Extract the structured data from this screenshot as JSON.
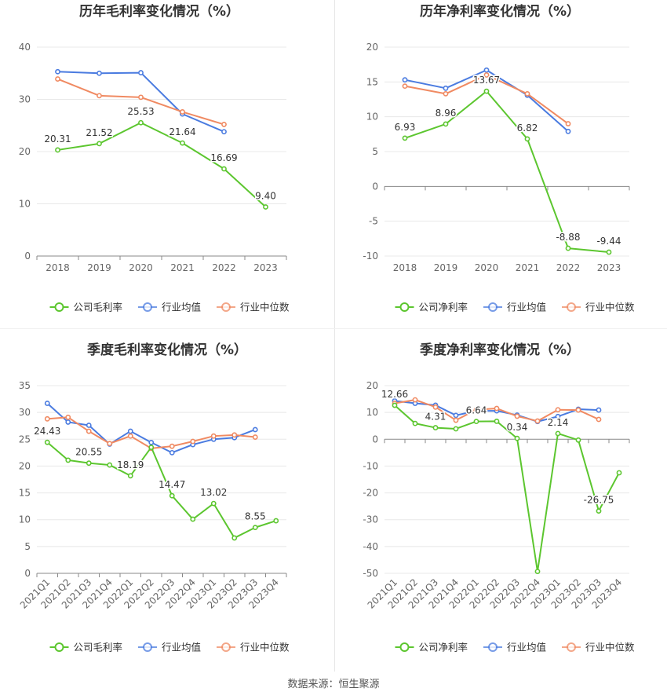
{
  "colors": {
    "company": "#5cc62f",
    "avg": "#4a7be0",
    "median": "#f08a62"
  },
  "source": "数据来源：恒生聚源",
  "chart_data": [
    {
      "type": "line",
      "title": "历年毛利率变化情况（%）",
      "x": [
        "2018",
        "2019",
        "2020",
        "2021",
        "2022",
        "2023"
      ],
      "ylim": [
        0,
        40
      ],
      "yticks": [
        0,
        10,
        20,
        30,
        40
      ],
      "grid": true,
      "legend_position": "bottom",
      "series": [
        {
          "name": "公司毛利率",
          "color": "#5cc62f",
          "values": [
            20.31,
            21.52,
            25.53,
            21.64,
            16.69,
            9.4
          ],
          "labels": [
            "20.31",
            "21.52",
            "25.53",
            "21.64",
            "16.69",
            "9.40"
          ]
        },
        {
          "name": "行业均值",
          "color": "#4a7be0",
          "values": [
            35.3,
            35.0,
            35.1,
            27.2,
            23.8,
            null
          ]
        },
        {
          "name": "行业中位数",
          "color": "#f08a62",
          "values": [
            33.9,
            30.7,
            30.4,
            27.6,
            25.2,
            null
          ]
        }
      ]
    },
    {
      "type": "line",
      "title": "历年净利率变化情况（%）",
      "x": [
        "2018",
        "2019",
        "2020",
        "2021",
        "2022",
        "2023"
      ],
      "ylim": [
        -10,
        20
      ],
      "yticks": [
        -10,
        -5,
        0,
        5,
        10,
        15,
        20
      ],
      "grid": true,
      "legend_position": "bottom",
      "series": [
        {
          "name": "公司净利率",
          "color": "#5cc62f",
          "values": [
            6.93,
            8.96,
            13.67,
            6.82,
            -8.88,
            -9.44
          ],
          "labels": [
            "6.93",
            "8.96",
            "13.67",
            "6.82",
            "-8.88",
            "-9.44"
          ]
        },
        {
          "name": "行业均值",
          "color": "#4a7be0",
          "values": [
            15.3,
            14.1,
            16.7,
            13.1,
            7.9,
            null
          ]
        },
        {
          "name": "行业中位数",
          "color": "#f08a62",
          "values": [
            14.4,
            13.3,
            16.0,
            13.3,
            9.0,
            null
          ]
        }
      ]
    },
    {
      "type": "line",
      "title": "季度毛利率变化情况（%）",
      "x": [
        "2021Q1",
        "2021Q2",
        "2021Q3",
        "2021Q4",
        "2022Q1",
        "2022Q2",
        "2022Q3",
        "2022Q4",
        "2023Q1",
        "2023Q2",
        "2023Q3",
        "2023Q4"
      ],
      "rotate_x": true,
      "ylim": [
        0,
        35
      ],
      "yticks": [
        0,
        5,
        10,
        15,
        20,
        25,
        30,
        35
      ],
      "grid": true,
      "legend_position": "bottom",
      "series": [
        {
          "name": "公司毛利率",
          "color": "#5cc62f",
          "values": [
            24.43,
            21.1,
            20.55,
            20.2,
            18.19,
            23.5,
            14.47,
            10.1,
            13.02,
            6.6,
            8.55,
            9.8
          ],
          "labels": [
            "24.43",
            null,
            "20.55",
            null,
            "18.19",
            null,
            "14.47",
            null,
            "13.02",
            null,
            "8.55",
            null
          ]
        },
        {
          "name": "行业均值",
          "color": "#4a7be0",
          "values": [
            31.7,
            28.2,
            27.6,
            24.1,
            26.5,
            24.4,
            22.5,
            24.0,
            25.0,
            25.3,
            26.8,
            null
          ]
        },
        {
          "name": "行业中位数",
          "color": "#f08a62",
          "values": [
            28.8,
            29.1,
            26.5,
            24.2,
            25.6,
            23.3,
            23.7,
            24.6,
            25.6,
            25.8,
            25.4,
            null
          ]
        }
      ]
    },
    {
      "type": "line",
      "title": "季度净利率变化情况（%）",
      "x": [
        "2021Q1",
        "2021Q2",
        "2021Q3",
        "2021Q4",
        "2022Q1",
        "2022Q2",
        "2022Q3",
        "2022Q4",
        "2023Q1",
        "2023Q2",
        "2023Q3",
        "2023Q4"
      ],
      "rotate_x": true,
      "ylim": [
        -50,
        20
      ],
      "yticks": [
        -50,
        -40,
        -30,
        -20,
        -10,
        0,
        10,
        20
      ],
      "grid": true,
      "legend_position": "bottom",
      "series": [
        {
          "name": "公司净利率",
          "color": "#5cc62f",
          "values": [
            12.66,
            5.9,
            4.31,
            3.9,
            6.64,
            6.7,
            0.34,
            -49.3,
            2.14,
            -0.3,
            -26.75,
            -12.5
          ],
          "labels": [
            "12.66",
            null,
            "4.31",
            null,
            "6.64",
            null,
            "0.34",
            null,
            "2.14",
            null,
            "-26.75",
            null
          ]
        },
        {
          "name": "行业均值",
          "color": "#4a7be0",
          "values": [
            14.3,
            13.4,
            12.7,
            8.9,
            10.6,
            10.6,
            9.0,
            6.6,
            8.5,
            11.2,
            10.9,
            null
          ]
        },
        {
          "name": "行业中位数",
          "color": "#f08a62",
          "values": [
            13.4,
            14.7,
            12.0,
            7.1,
            11.0,
            11.5,
            8.6,
            6.8,
            11.0,
            10.9,
            7.4,
            null
          ]
        }
      ]
    }
  ]
}
